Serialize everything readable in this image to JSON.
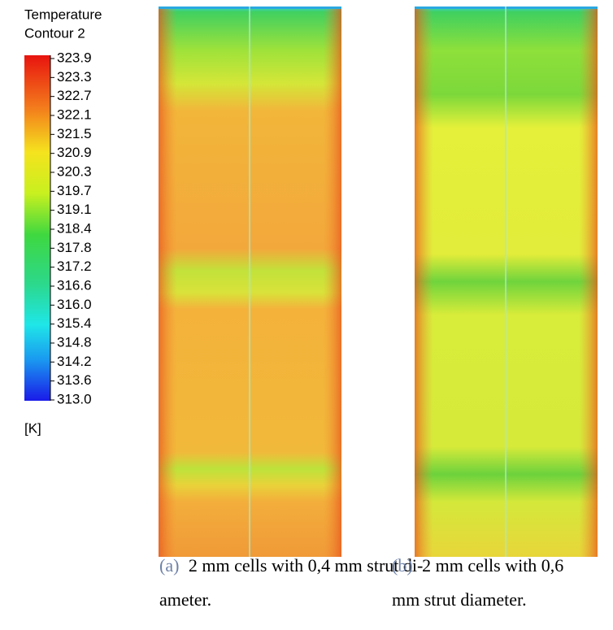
{
  "legend": {
    "title": [
      "Temperature",
      "Contour 2"
    ],
    "labels": [
      "323.9",
      "323.3",
      "322.7",
      "322.1",
      "321.5",
      "320.9",
      "320.3",
      "319.7",
      "319.1",
      "318.4",
      "317.8",
      "317.2",
      "316.6",
      "316.0",
      "315.4",
      "314.8",
      "314.2",
      "313.6",
      "313.0"
    ],
    "unit": "[K]"
  },
  "panels": [
    {
      "label": "(a)",
      "caption": [
        "2 mm cells with 0,4 mm strut di-",
        "ameter."
      ]
    },
    {
      "label": "(b)",
      "caption": [
        "2 mm cells with 0,6",
        "mm strut diameter."
      ]
    }
  ]
}
